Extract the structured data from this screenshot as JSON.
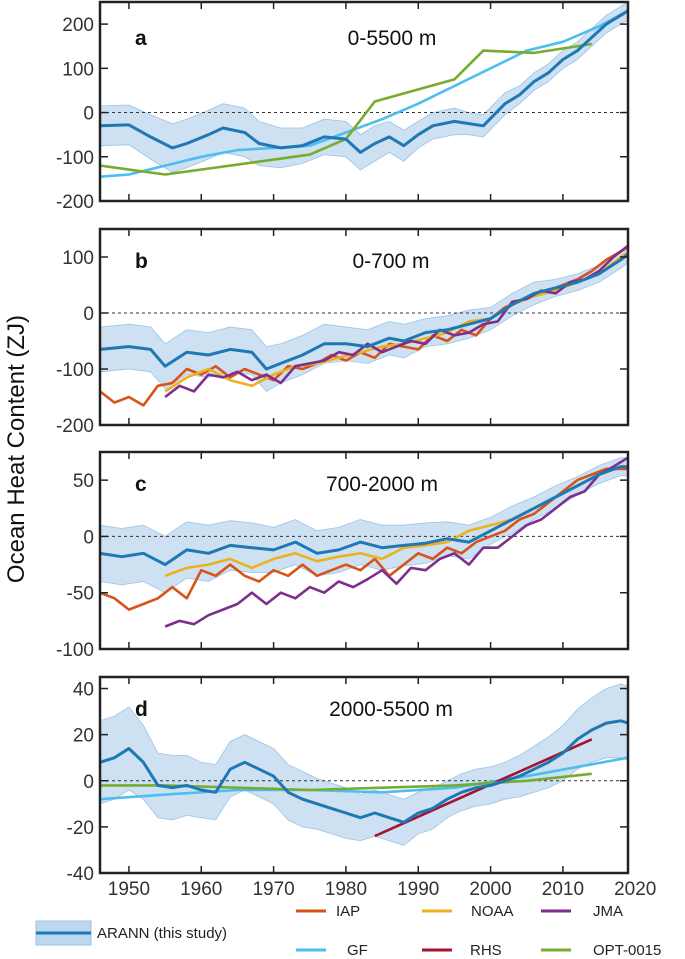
{
  "figure": {
    "ylabel": "Ocean Heat Content (ZJ)",
    "x_ticks": [
      "1950",
      "1960",
      "1970",
      "1980",
      "1990",
      "2000",
      "2010",
      "2020"
    ]
  },
  "legend": [
    {
      "name": "ARANN (this study)",
      "color": "#1f77b4",
      "band": true
    },
    {
      "name": "IAP",
      "color": "#d95319"
    },
    {
      "name": "NOAA",
      "color": "#edb120"
    },
    {
      "name": "JMA",
      "color": "#7e2f8e"
    },
    {
      "name": "GF",
      "color": "#4dbeee"
    },
    {
      "name": "RHS",
      "color": "#a2142f"
    },
    {
      "name": "OPT-0015",
      "color": "#77ac30"
    }
  ],
  "chart_data": [
    {
      "type": "line",
      "panel": "a",
      "title": "0-5500 m",
      "xlim": [
        1946,
        2019
      ],
      "ylim": [
        -200,
        250
      ],
      "yticks": [
        -200,
        -100,
        0,
        100,
        200
      ],
      "series": [
        {
          "name": "ARANN (this study)",
          "color": "#1f77b4",
          "x": [
            1946,
            1950,
            1953,
            1956,
            1958,
            1961,
            1963,
            1966,
            1968,
            1971,
            1974,
            1977,
            1980,
            1982,
            1984,
            1986,
            1988,
            1990,
            1992,
            1995,
            1997,
            1999,
            2002,
            2004,
            2006,
            2008,
            2010,
            2012,
            2014,
            2016,
            2018,
            2019
          ],
          "y": [
            -30,
            -28,
            -55,
            -80,
            -70,
            -50,
            -35,
            -45,
            -70,
            -80,
            -75,
            -55,
            -60,
            -90,
            -70,
            -55,
            -75,
            -50,
            -30,
            -20,
            -25,
            -30,
            20,
            40,
            70,
            90,
            120,
            140,
            170,
            200,
            220,
            230
          ],
          "band": [
            45,
            45,
            50,
            55,
            55,
            55,
            55,
            55,
            50,
            45,
            40,
            40,
            40,
            40,
            40,
            35,
            35,
            30,
            30,
            30,
            25,
            25,
            25,
            20,
            20,
            20,
            20,
            20,
            20,
            20,
            20,
            20
          ]
        },
        {
          "name": "GF",
          "color": "#4dbeee",
          "x": [
            1946,
            1950,
            1955,
            1960,
            1965,
            1970,
            1975,
            1980,
            1985,
            1990,
            1995,
            2000,
            2005,
            2010,
            2015,
            2019
          ],
          "y": [
            -145,
            -140,
            -120,
            -100,
            -85,
            -80,
            -75,
            -45,
            -15,
            20,
            60,
            100,
            140,
            160,
            195,
            230
          ]
        },
        {
          "name": "OPT-0015",
          "color": "#77ac30",
          "x": [
            1946,
            1955,
            1975,
            1980,
            1984,
            1995,
            1999,
            2006,
            2014
          ],
          "y": [
            -120,
            -140,
            -95,
            -60,
            25,
            75,
            140,
            135,
            155
          ]
        }
      ]
    },
    {
      "type": "line",
      "panel": "b",
      "title": "0-700 m",
      "xlim": [
        1946,
        2019
      ],
      "ylim": [
        -200,
        150
      ],
      "yticks": [
        -200,
        -100,
        0,
        100
      ],
      "series": [
        {
          "name": "ARANN (this study)",
          "color": "#1f77b4",
          "x": [
            1946,
            1950,
            1953,
            1955,
            1958,
            1961,
            1964,
            1967,
            1969,
            1971,
            1974,
            1977,
            1980,
            1983,
            1986,
            1988,
            1991,
            1994,
            1997,
            2000,
            2003,
            2006,
            2009,
            2012,
            2015,
            2018,
            2019
          ],
          "y": [
            -65,
            -60,
            -65,
            -95,
            -70,
            -75,
            -65,
            -70,
            -100,
            -90,
            -75,
            -55,
            -55,
            -60,
            -45,
            -50,
            -35,
            -30,
            -20,
            -10,
            15,
            35,
            45,
            55,
            70,
            95,
            105
          ],
          "band": [
            40,
            40,
            40,
            40,
            40,
            40,
            40,
            40,
            40,
            35,
            35,
            35,
            30,
            30,
            30,
            30,
            25,
            25,
            25,
            20,
            20,
            20,
            15,
            15,
            15,
            15,
            15
          ]
        },
        {
          "name": "IAP",
          "color": "#d95319",
          "x": [
            1946,
            1948,
            1950,
            1952,
            1954,
            1956,
            1958,
            1960,
            1962,
            1964,
            1966,
            1968,
            1970,
            1972,
            1974,
            1976,
            1978,
            1980,
            1982,
            1984,
            1986,
            1988,
            1990,
            1992,
            1994,
            1996,
            1998,
            2000,
            2002,
            2004,
            2006,
            2008,
            2010,
            2012,
            2014,
            2016,
            2018,
            2019
          ],
          "y": [
            -140,
            -160,
            -150,
            -165,
            -130,
            -125,
            -100,
            -110,
            -95,
            -115,
            -100,
            -110,
            -120,
            -95,
            -100,
            -90,
            -75,
            -85,
            -70,
            -80,
            -55,
            -60,
            -65,
            -40,
            -50,
            -30,
            -40,
            -10,
            10,
            20,
            35,
            40,
            50,
            60,
            75,
            95,
            110,
            118
          ]
        },
        {
          "name": "NOAA",
          "color": "#edb120",
          "x": [
            1955,
            1958,
            1961,
            1964,
            1967,
            1970,
            1973,
            1976,
            1979,
            1982,
            1985,
            1988,
            1991,
            1994,
            1997,
            2000,
            2003,
            2006,
            2009,
            2012,
            2015,
            2018,
            2019
          ],
          "y": [
            -140,
            -115,
            -100,
            -120,
            -130,
            -110,
            -95,
            -90,
            -80,
            -70,
            -60,
            -55,
            -45,
            -35,
            -15,
            -10,
            15,
            30,
            40,
            55,
            70,
            100,
            108
          ]
        },
        {
          "name": "JMA",
          "color": "#7e2f8e",
          "x": [
            1955,
            1957,
            1959,
            1961,
            1963,
            1965,
            1967,
            1969,
            1971,
            1973,
            1975,
            1977,
            1979,
            1981,
            1983,
            1985,
            1987,
            1989,
            1991,
            1993,
            1995,
            1997,
            1999,
            2001,
            2003,
            2005,
            2007,
            2009,
            2011,
            2013,
            2015,
            2017,
            2019
          ],
          "y": [
            -150,
            -130,
            -140,
            -110,
            -115,
            -105,
            -120,
            -110,
            -125,
            -95,
            -90,
            -85,
            -70,
            -75,
            -55,
            -70,
            -60,
            -50,
            -55,
            -30,
            -40,
            -35,
            -20,
            -15,
            20,
            25,
            40,
            35,
            55,
            60,
            75,
            100,
            120
          ]
        }
      ]
    },
    {
      "type": "line",
      "panel": "c",
      "title": "700-2000 m",
      "xlim": [
        1946,
        2019
      ],
      "ylim": [
        -100,
        75
      ],
      "yticks": [
        -100,
        -50,
        0,
        50
      ],
      "series": [
        {
          "name": "ARANN (this study)",
          "color": "#1f77b4",
          "x": [
            1946,
            1949,
            1952,
            1955,
            1958,
            1961,
            1964,
            1967,
            1970,
            1973,
            1976,
            1979,
            1982,
            1985,
            1988,
            1991,
            1994,
            1997,
            2000,
            2003,
            2006,
            2009,
            2012,
            2015,
            2018,
            2019
          ],
          "y": [
            -15,
            -18,
            -15,
            -25,
            -12,
            -15,
            -8,
            -10,
            -12,
            -5,
            -15,
            -12,
            -5,
            -10,
            -8,
            -6,
            -2,
            -5,
            5,
            15,
            25,
            35,
            45,
            55,
            62,
            62
          ],
          "band": [
            25,
            25,
            25,
            25,
            25,
            25,
            22,
            22,
            20,
            20,
            20,
            20,
            20,
            20,
            18,
            18,
            15,
            15,
            12,
            12,
            10,
            10,
            8,
            8,
            8,
            8
          ]
        },
        {
          "name": "IAP",
          "color": "#d95319",
          "x": [
            1946,
            1948,
            1950,
            1952,
            1954,
            1956,
            1958,
            1960,
            1962,
            1964,
            1966,
            1968,
            1970,
            1972,
            1974,
            1976,
            1978,
            1980,
            1982,
            1984,
            1986,
            1988,
            1990,
            1992,
            1994,
            1996,
            1998,
            2000,
            2002,
            2004,
            2006,
            2008,
            2010,
            2012,
            2014,
            2016,
            2018,
            2019
          ],
          "y": [
            -50,
            -55,
            -65,
            -60,
            -55,
            -45,
            -55,
            -30,
            -35,
            -25,
            -35,
            -40,
            -30,
            -35,
            -25,
            -35,
            -30,
            -25,
            -30,
            -20,
            -35,
            -25,
            -15,
            -20,
            -10,
            -15,
            -5,
            0,
            5,
            15,
            20,
            30,
            40,
            50,
            55,
            60,
            60,
            60
          ]
        },
        {
          "name": "NOAA",
          "color": "#edb120",
          "x": [
            1955,
            1958,
            1961,
            1964,
            1967,
            1970,
            1973,
            1976,
            1979,
            1982,
            1985,
            1988,
            1991,
            1994,
            1997,
            2000,
            2003,
            2006,
            2009,
            2012,
            2015,
            2018,
            2019
          ],
          "y": [
            -35,
            -28,
            -25,
            -20,
            -28,
            -20,
            -15,
            -22,
            -18,
            -15,
            -20,
            -10,
            -8,
            -5,
            5,
            10,
            15,
            25,
            35,
            45,
            55,
            62,
            62
          ]
        },
        {
          "name": "JMA",
          "color": "#7e2f8e",
          "x": [
            1955,
            1957,
            1959,
            1961,
            1963,
            1965,
            1967,
            1969,
            1971,
            1973,
            1975,
            1977,
            1979,
            1981,
            1983,
            1985,
            1987,
            1989,
            1991,
            1993,
            1995,
            1997,
            1999,
            2001,
            2003,
            2005,
            2007,
            2009,
            2011,
            2013,
            2015,
            2017,
            2019
          ],
          "y": [
            -80,
            -75,
            -78,
            -70,
            -65,
            -60,
            -50,
            -60,
            -50,
            -55,
            -45,
            -50,
            -40,
            -45,
            -38,
            -30,
            -42,
            -28,
            -30,
            -20,
            -15,
            -25,
            -10,
            -10,
            0,
            10,
            15,
            25,
            35,
            40,
            55,
            62,
            70
          ]
        }
      ]
    },
    {
      "type": "line",
      "panel": "d",
      "title": "2000-5500 m",
      "xlim": [
        1946,
        2019
      ],
      "ylim": [
        -40,
        45
      ],
      "yticks": [
        -40,
        -20,
        0,
        20,
        40
      ],
      "series": [
        {
          "name": "ARANN (this study)",
          "color": "#1f77b4",
          "x": [
            1946,
            1948,
            1950,
            1952,
            1954,
            1956,
            1958,
            1960,
            1962,
            1964,
            1966,
            1968,
            1970,
            1972,
            1974,
            1976,
            1978,
            1980,
            1982,
            1984,
            1986,
            1988,
            1990,
            1992,
            1994,
            1996,
            1998,
            2000,
            2002,
            2004,
            2006,
            2008,
            2010,
            2012,
            2014,
            2016,
            2018,
            2019
          ],
          "y": [
            8,
            10,
            14,
            8,
            -2,
            -3,
            -2,
            -4,
            -5,
            5,
            8,
            5,
            2,
            -5,
            -8,
            -10,
            -12,
            -14,
            -16,
            -14,
            -16,
            -18,
            -14,
            -12,
            -8,
            -5,
            -3,
            -2,
            0,
            2,
            5,
            8,
            12,
            18,
            22,
            25,
            26,
            25
          ],
          "band": [
            18,
            18,
            18,
            16,
            14,
            14,
            13,
            12,
            12,
            12,
            12,
            12,
            12,
            12,
            12,
            11,
            11,
            11,
            10,
            10,
            10,
            10,
            9,
            9,
            8,
            8,
            8,
            8,
            8,
            9,
            10,
            11,
            12,
            13,
            14,
            15,
            16,
            16
          ]
        },
        {
          "name": "GF",
          "color": "#4dbeee",
          "x": [
            1946,
            1955,
            1965,
            1975,
            1985,
            1995,
            2005,
            2019
          ],
          "y": [
            -8,
            -6,
            -4,
            -4,
            -5,
            -3,
            2,
            10
          ]
        },
        {
          "name": "RHS",
          "color": "#a2142f",
          "x": [
            1984,
            2014
          ],
          "y": [
            -24,
            18
          ]
        },
        {
          "name": "OPT-0015",
          "color": "#77ac30",
          "x": [
            1946,
            1955,
            1965,
            1975,
            1985,
            1995,
            2005,
            2014
          ],
          "y": [
            -2,
            -2,
            -3,
            -4,
            -3,
            -2,
            0,
            3
          ]
        }
      ]
    }
  ]
}
